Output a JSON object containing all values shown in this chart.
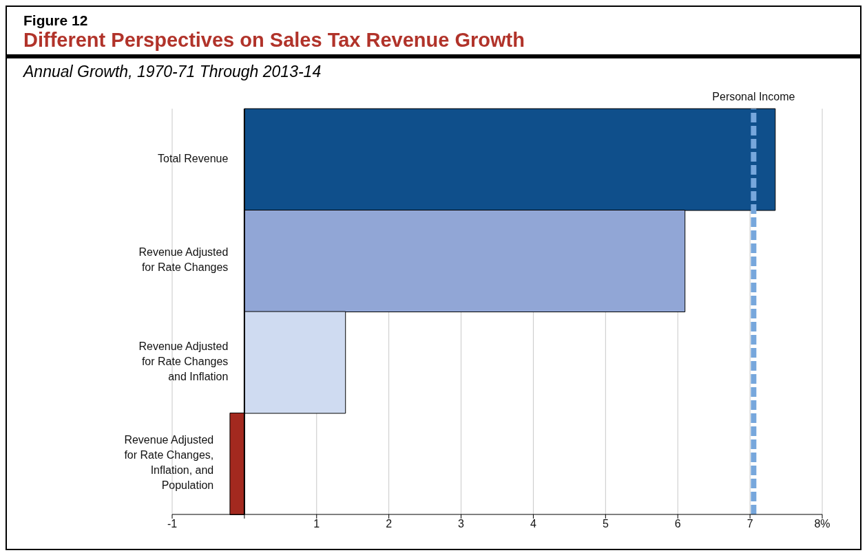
{
  "chart_data": {
    "type": "bar",
    "orientation": "horizontal",
    "title": "Different Perspectives on Sales Tax Revenue Growth",
    "subtitle": "Annual Growth, 1970-71 Through 2013-14",
    "annotations": [
      "Figure 12"
    ],
    "categories": [
      "Total Revenue",
      "Revenue Adjusted for Rate Changes",
      "Revenue Adjusted for Rate Changes and Inflation",
      "Revenue Adjusted for Rate Changes, Inflation, and Population"
    ],
    "values": [
      7.35,
      6.1,
      1.4,
      -0.2
    ],
    "colors": [
      "#0f4f8b",
      "#91a6d6",
      "#cfdbf1",
      "#a3291f"
    ],
    "xlim": [
      -1,
      8
    ],
    "xticks": [
      -1,
      {
        "value": 0,
        "label": null
      },
      1,
      2,
      3,
      4,
      5,
      6,
      7,
      {
        "value": 8,
        "label": "8%"
      }
    ],
    "grid": "x",
    "ref_lines": [
      {
        "axis": "x",
        "value": 7.05,
        "label": "Personal Income",
        "color": "#77a7dc",
        "line_style": "dashed"
      }
    ]
  }
}
